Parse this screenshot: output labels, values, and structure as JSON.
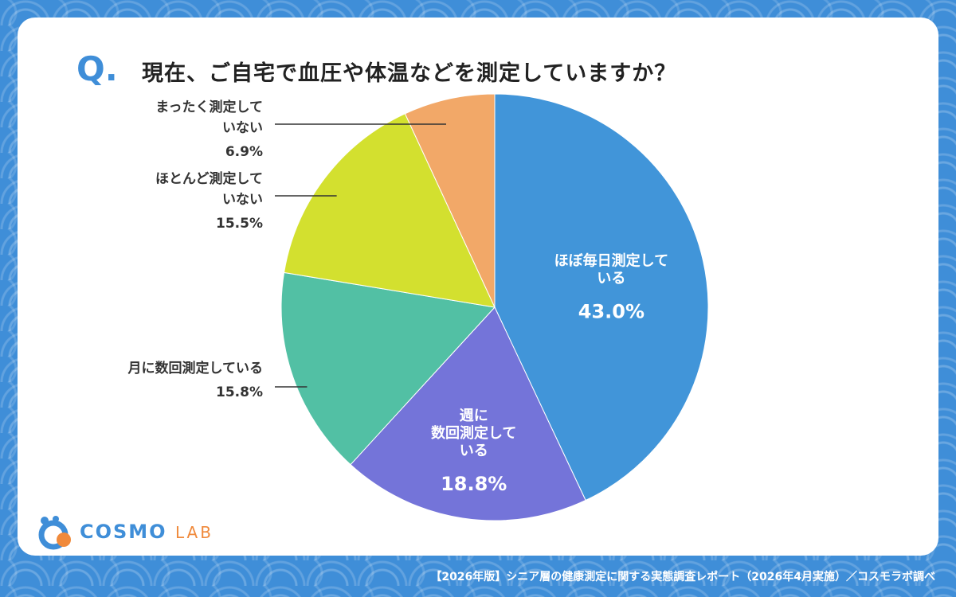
{
  "question": {
    "mark": "Q",
    "text": "現在、ご自宅で血圧や体温などを測定していますか？"
  },
  "chart_data": {
    "type": "pie",
    "title": "現在、ご自宅で血圧や体温などを測定していますか？",
    "slices": [
      {
        "label_lines": [
          "ほぼ毎日測定して",
          "いる"
        ],
        "value": 43.0,
        "value_label": "43.0%",
        "color": "#4195d9",
        "label_position": "inside"
      },
      {
        "label_lines": [
          "週に",
          "数回測定して",
          "いる"
        ],
        "value": 18.8,
        "value_label": "18.8%",
        "color": "#7474d9",
        "label_position": "inside"
      },
      {
        "label_lines": [
          "月に数回測定している"
        ],
        "value": 15.8,
        "value_label": "15.8%",
        "color": "#52c0a4",
        "label_position": "outside-left"
      },
      {
        "label_lines": [
          "ほとんど測定して",
          "いない"
        ],
        "value": 15.5,
        "value_label": "15.5%",
        "color": "#d3e02f",
        "label_position": "outside-left"
      },
      {
        "label_lines": [
          "まったく測定して",
          "いない"
        ],
        "value": 6.9,
        "value_label": "6.9%",
        "color": "#f2a868",
        "label_position": "outside-left"
      }
    ],
    "start": "12 o'clock",
    "direction": "clockwise"
  },
  "brand": {
    "name": "COSMO",
    "suffix": "LAB"
  },
  "footer": "【2026年版】シニア層の健康測定に関する実態調査レポート（2026年4月実施）／コスモラボ調べ"
}
